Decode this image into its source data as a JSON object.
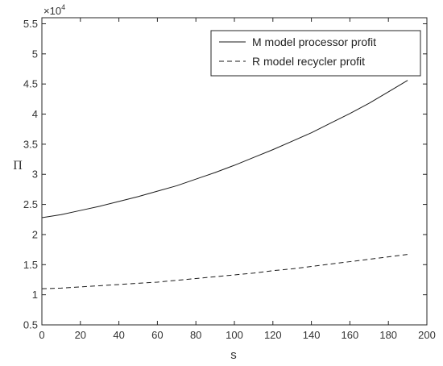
{
  "chart_data": {
    "type": "line",
    "title": "",
    "xlabel": "s",
    "ylabel": "Π",
    "y_exponent_label": {
      "base": "×10",
      "exponent": "4"
    },
    "xlim": [
      0,
      200
    ],
    "ylim": [
      0.5,
      5.6
    ],
    "xticks": [
      0,
      20,
      40,
      60,
      80,
      100,
      120,
      140,
      160,
      180,
      200
    ],
    "xtick_labels": [
      "0",
      "20",
      "40",
      "60",
      "80",
      "100",
      "120",
      "140",
      "160",
      "180",
      "200"
    ],
    "yticks": [
      0.5,
      1,
      1.5,
      2,
      2.5,
      3,
      3.5,
      4,
      4.5,
      5,
      5.5
    ],
    "ytick_labels": [
      "0.5",
      "1",
      "1.5",
      "2",
      "2.5",
      "3",
      "3.5",
      "4",
      "4.5",
      "5",
      "5.5"
    ],
    "grid": false,
    "legend_position": "top-right",
    "series": [
      {
        "name": "M model processor profit",
        "line_style": "solid",
        "color": "#1a1a1a",
        "x": [
          0,
          10,
          20,
          30,
          40,
          50,
          60,
          70,
          80,
          90,
          100,
          110,
          120,
          130,
          140,
          150,
          160,
          170,
          180,
          190
        ],
        "y": [
          2.28,
          2.33,
          2.4,
          2.47,
          2.55,
          2.63,
          2.72,
          2.81,
          2.92,
          3.03,
          3.15,
          3.28,
          3.41,
          3.55,
          3.69,
          3.85,
          4.01,
          4.18,
          4.37,
          4.56
        ]
      },
      {
        "name": "R model recycler profit",
        "line_style": "dashed",
        "color": "#1a1a1a",
        "x": [
          0,
          10,
          20,
          30,
          40,
          50,
          60,
          70,
          80,
          90,
          100,
          110,
          120,
          130,
          140,
          150,
          160,
          170,
          180,
          190
        ],
        "y": [
          1.1,
          1.11,
          1.13,
          1.15,
          1.17,
          1.19,
          1.21,
          1.24,
          1.27,
          1.3,
          1.33,
          1.36,
          1.4,
          1.43,
          1.47,
          1.51,
          1.55,
          1.59,
          1.63,
          1.67
        ]
      }
    ]
  }
}
